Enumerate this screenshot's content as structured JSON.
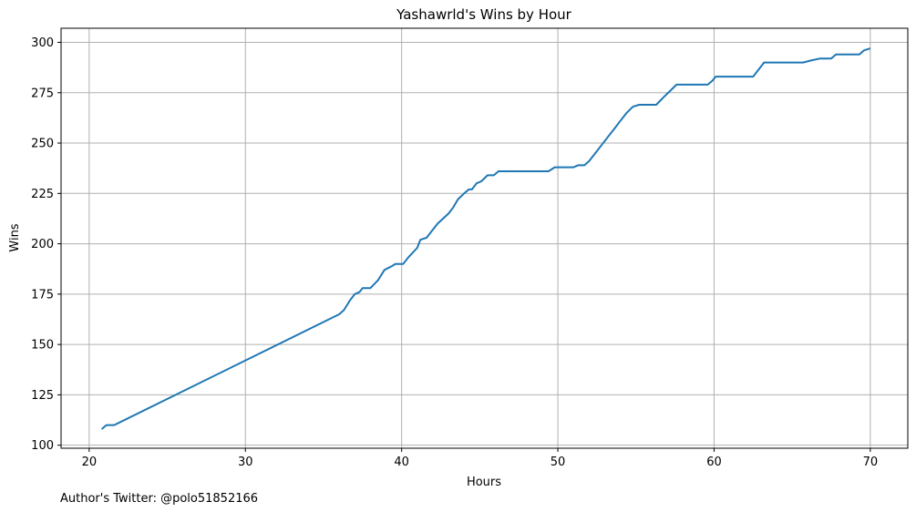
{
  "chart_data": {
    "type": "line",
    "title": "Yashawrld's Wins by Hour",
    "xlabel": "Hours",
    "ylabel": "Wins",
    "xlim": [
      18.2,
      72.4
    ],
    "ylim": [
      98.5,
      307
    ],
    "xticks": [
      20,
      30,
      40,
      50,
      60,
      70
    ],
    "yticks": [
      100,
      125,
      150,
      175,
      200,
      225,
      250,
      275,
      300
    ],
    "grid": true,
    "color": "#1f77b4",
    "series": [
      {
        "x": [
          20.8,
          21.1,
          21.6,
          36.0,
          36.3,
          36.7,
          37.0,
          37.3,
          37.5,
          38.0,
          38.5,
          38.9,
          39.4,
          39.6,
          40.1,
          40.4,
          41.0,
          41.2,
          41.6,
          42.0,
          42.3,
          43.0,
          43.3,
          43.6,
          44.0,
          44.3,
          44.5,
          44.8,
          45.1,
          45.5,
          45.9,
          46.2,
          46.5,
          49.4,
          49.8,
          50.6,
          51.0,
          51.3,
          51.7,
          52.0,
          52.3,
          52.8,
          53.3,
          53.6,
          54.0,
          54.4,
          54.8,
          55.2,
          56.3,
          56.8,
          57.2,
          57.6,
          59.6,
          59.9,
          60.1,
          62.5,
          62.9,
          63.2,
          65.7,
          66.2,
          66.8,
          67.5,
          67.8,
          69.3,
          69.6,
          70.0
        ],
        "y": [
          108,
          110,
          110,
          165,
          167,
          172,
          175,
          176,
          178,
          178,
          182,
          187,
          189,
          190,
          190,
          193,
          198,
          202,
          203,
          207,
          210,
          215,
          218,
          222,
          225,
          227,
          227,
          230,
          231,
          234,
          234,
          236,
          236,
          236,
          238,
          238,
          238,
          239,
          239,
          241,
          244,
          249,
          254,
          257,
          261,
          265,
          268,
          269,
          269,
          273,
          276,
          279,
          279,
          281,
          283,
          283,
          287,
          290,
          290,
          291,
          292,
          292,
          294,
          294,
          296,
          297
        ]
      }
    ]
  },
  "footer": {
    "text": "Author's Twitter: @polo51852166"
  }
}
